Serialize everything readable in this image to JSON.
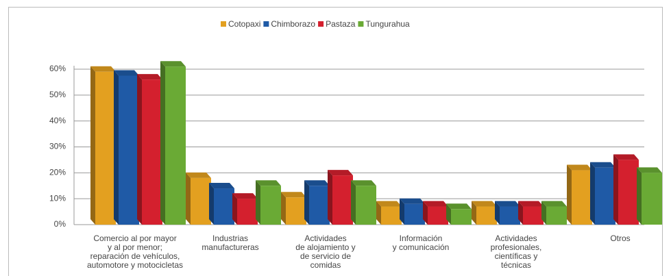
{
  "chart_data": {
    "type": "bar3d",
    "categories": [
      [
        "Comercio al por mayor",
        "y al por menor;",
        "reparación de vehículos,",
        "automotore y motocicletas"
      ],
      [
        "Industrias",
        "manufactureras"
      ],
      [
        "Actividades",
        "de alojamiento y",
        "de servicio de",
        "comidas"
      ],
      [
        "Información",
        "y comunicación"
      ],
      [
        "Actividades",
        "profesionales,",
        "científicas y",
        "técnicas"
      ],
      [
        "Otros"
      ]
    ],
    "series": [
      {
        "name": "Cotopaxi",
        "color": "#e3a020",
        "values": [
          59,
          18,
          10.5,
          7,
          7,
          21
        ]
      },
      {
        "name": "Chimborazo",
        "color": "#1f5aa6",
        "values": [
          57.5,
          14,
          15,
          8,
          7,
          22
        ]
      },
      {
        "name": "Pastaza",
        "color": "#d4202e",
        "values": [
          56,
          10,
          19,
          7,
          7,
          25
        ]
      },
      {
        "name": "Tungurahua",
        "color": "#6aaa35",
        "values": [
          61,
          15,
          15,
          6,
          7,
          20
        ]
      }
    ],
    "ylim": [
      0,
      60
    ],
    "yticks": [
      {
        "value": 0,
        "label": "0%"
      },
      {
        "value": 10,
        "label": "10%"
      },
      {
        "value": 20,
        "label": "20%"
      },
      {
        "value": 30,
        "label": "30%"
      },
      {
        "value": 40,
        "label": "40%"
      },
      {
        "value": 50,
        "label": "50%"
      },
      {
        "value": 60,
        "label": "60%"
      }
    ],
    "grid": true,
    "legend": "top"
  }
}
